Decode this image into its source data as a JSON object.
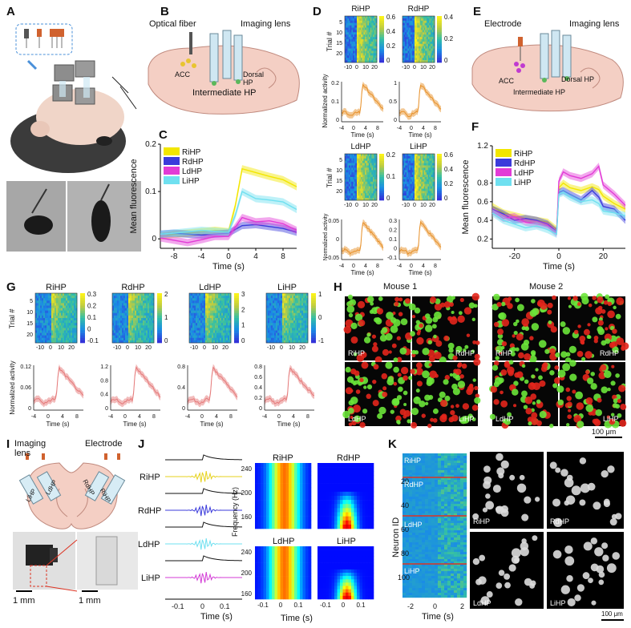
{
  "panels": {
    "A": "A",
    "B": "B",
    "C": "C",
    "D": "D",
    "E": "E",
    "F": "F",
    "G": "G",
    "H": "H",
    "I": "I",
    "J": "J",
    "K": "K"
  },
  "B": {
    "optical_fiber": "Optical fiber",
    "imaging_lens": "Imaging lens",
    "acc": "ACC",
    "dorsal_hp": "Dorsal",
    "dorsal_hp2": "HP",
    "intermediate_hp": "Intermediate HP"
  },
  "E": {
    "electrode": "Electrode",
    "imaging_lens": "Imaging lens",
    "acc": "ACC",
    "dorsal_hp": "Dorsal HP",
    "intermediate_hp": "Intermediate HP"
  },
  "I": {
    "imaging_lens": "Imaging",
    "imaging_lens2": "lens",
    "electrode": "Electrode",
    "lihp": "LiHP",
    "ldhp": "LdHP",
    "rdhp": "RdHP",
    "rihp": "RiHP",
    "scale1": "1 mm",
    "scale2": "1 mm"
  },
  "H": {
    "mouse1": "Mouse 1",
    "mouse2": "Mouse 2",
    "scale": "100 μm",
    "tiles": [
      "RiHP",
      "RdHP",
      "LdHP",
      "LiHP"
    ]
  },
  "K": {
    "scale": "100 μm",
    "tiles": [
      "RiHP",
      "RdHP",
      "LdHP",
      "LiHP"
    ],
    "ylabel": "Neuron ID",
    "xlabel": "Time (s)",
    "yticks": [
      "20",
      "40",
      "60",
      "80",
      "100"
    ],
    "xticks": [
      "-2",
      "0",
      "2"
    ],
    "regions": [
      "RiHP",
      "RdHP",
      "LdHP",
      "LiHP"
    ]
  },
  "J": {
    "rows": [
      "RiHP",
      "RdHP",
      "LdHP",
      "LiHP"
    ],
    "xlabel": "Time (s)",
    "xticks": [
      "-0.1",
      "0",
      "0.1"
    ],
    "heat_titles": [
      "RiHP",
      "RdHP",
      "LdHP",
      "LiHP"
    ],
    "ylabel": "Frequency (Hz)",
    "yticks": [
      "240",
      "200",
      "160"
    ],
    "hxlabel": "Time (s)",
    "hxticks": [
      "-0.1",
      "0",
      "0.1"
    ]
  },
  "D": {
    "titles": [
      "RiHP",
      "RdHP",
      "LdHP",
      "LiHP"
    ],
    "trial": "Trial #",
    "time": "Time (s)",
    "norm": "Normalized activity",
    "hm_xticks": [
      "-10",
      "0",
      "10",
      "20"
    ],
    "hm_yticks": [
      "5",
      "10",
      "15",
      "20"
    ],
    "cb": [
      [
        "0.6",
        "0.4",
        "0.2",
        "0"
      ],
      [
        "0.4",
        "0.2",
        "0"
      ],
      [
        "0.2",
        "0.1",
        "0"
      ],
      [
        "0.6",
        "0.4",
        "0.2",
        "0"
      ]
    ],
    "line_xticks": [
      "-4",
      "0",
      "4",
      "8"
    ],
    "ry": [
      [
        "0.2",
        "0.1",
        "0"
      ],
      [
        "1",
        "0.5",
        "0"
      ],
      [
        "0.05",
        "0",
        "-0.05"
      ],
      [
        "0.3",
        "0.2",
        "0.1",
        "0",
        "-0.1"
      ]
    ]
  },
  "G": {
    "titles": [
      "RiHP",
      "RdHP",
      "LdHP",
      "LiHP"
    ],
    "trial": "Trial #",
    "time": "Time (s)",
    "norm": "Normalized activity",
    "hm_xticks": [
      "-10",
      "0",
      "10",
      "20"
    ],
    "hm_yticks": [
      "5",
      "10",
      "15",
      "20"
    ],
    "cb": [
      [
        "0.3",
        "0.2",
        "0.1",
        "0",
        "-0.1"
      ],
      [
        "2",
        "1",
        "0"
      ],
      [
        "3",
        "2",
        "1",
        "0"
      ],
      [
        "1",
        "0",
        "-1"
      ]
    ],
    "line_xticks": [
      "-4",
      "0",
      "4",
      "8"
    ],
    "ry": [
      [
        "0.12",
        "0.06",
        "0"
      ],
      [
        "1.2",
        "0.8",
        "0.4",
        "0"
      ],
      [
        "0.8",
        "0.4",
        "0"
      ],
      [
        "0.8",
        "0.6",
        "0.4",
        "0.2",
        "0"
      ]
    ]
  },
  "chart_data": [
    {
      "type": "line",
      "panel": "C",
      "ylabel": "Mean fluorescence",
      "xlabel": "Time (s)",
      "xlim": [
        -10,
        10
      ],
      "ylim": [
        -0.02,
        0.2
      ],
      "xticks": [
        "-8",
        "-4",
        "0",
        "4",
        "8"
      ],
      "yticks": [
        "0.2",
        "0.1",
        "0"
      ],
      "legend": "top-left",
      "x": [
        -10,
        -8,
        -6,
        -4,
        -2,
        0,
        1,
        2,
        4,
        6,
        8,
        10
      ],
      "series": [
        {
          "name": "RiHP",
          "color": "#f2e600",
          "values": [
            0.005,
            0.01,
            0.012,
            0.015,
            0.018,
            0.015,
            0.07,
            0.148,
            0.14,
            0.132,
            0.125,
            0.11
          ]
        },
        {
          "name": "RdHP",
          "color": "#3b3bdb",
          "values": [
            0.01,
            0.012,
            0.01,
            0.008,
            0.01,
            0.012,
            0.02,
            0.028,
            0.03,
            0.026,
            0.022,
            0.014
          ]
        },
        {
          "name": "LdHP",
          "color": "#e23bd6",
          "values": [
            0.002,
            -0.003,
            -0.008,
            -0.002,
            0.005,
            0.005,
            0.025,
            0.045,
            0.036,
            0.038,
            0.032,
            0.018
          ]
        },
        {
          "name": "LiHP",
          "color": "#6fe0f0",
          "values": [
            0.01,
            0.012,
            0.015,
            0.018,
            0.016,
            0.014,
            0.05,
            0.1,
            0.085,
            0.082,
            0.078,
            0.062
          ]
        }
      ]
    },
    {
      "type": "line",
      "panel": "F",
      "ylabel": "Mean fluorescence",
      "xlabel": "Time (s)",
      "xlim": [
        -30,
        30
      ],
      "ylim": [
        0.1,
        1.2
      ],
      "xticks": [
        "-20",
        "0",
        "20"
      ],
      "yticks": [
        "1.2",
        "0.8",
        "0.6",
        "0.4",
        "0.2"
      ],
      "legend": "top-left",
      "x": [
        -30,
        -25,
        -20,
        -15,
        -10,
        -5,
        -1,
        0,
        2,
        5,
        10,
        15,
        18,
        20,
        25,
        30
      ],
      "series": [
        {
          "name": "RiHP",
          "color": "#f2e600",
          "values": [
            0.55,
            0.48,
            0.45,
            0.42,
            0.4,
            0.38,
            0.3,
            0.75,
            0.8,
            0.75,
            0.72,
            0.76,
            0.73,
            0.66,
            0.58,
            0.52
          ]
        },
        {
          "name": "RdHP",
          "color": "#3b3bdb",
          "values": [
            0.52,
            0.47,
            0.4,
            0.42,
            0.4,
            0.36,
            0.28,
            0.7,
            0.72,
            0.68,
            0.62,
            0.72,
            0.65,
            0.55,
            0.52,
            0.4
          ]
        },
        {
          "name": "LdHP",
          "color": "#e23bd6",
          "values": [
            0.5,
            0.42,
            0.44,
            0.38,
            0.36,
            0.34,
            0.26,
            0.82,
            0.92,
            0.88,
            0.85,
            0.9,
            0.98,
            0.78,
            0.68,
            0.56
          ]
        },
        {
          "name": "LiHP",
          "color": "#6fe0f0",
          "values": [
            0.48,
            0.4,
            0.36,
            0.32,
            0.34,
            0.3,
            0.25,
            0.68,
            0.7,
            0.65,
            0.6,
            0.62,
            0.58,
            0.5,
            0.48,
            0.45
          ]
        }
      ]
    }
  ]
}
